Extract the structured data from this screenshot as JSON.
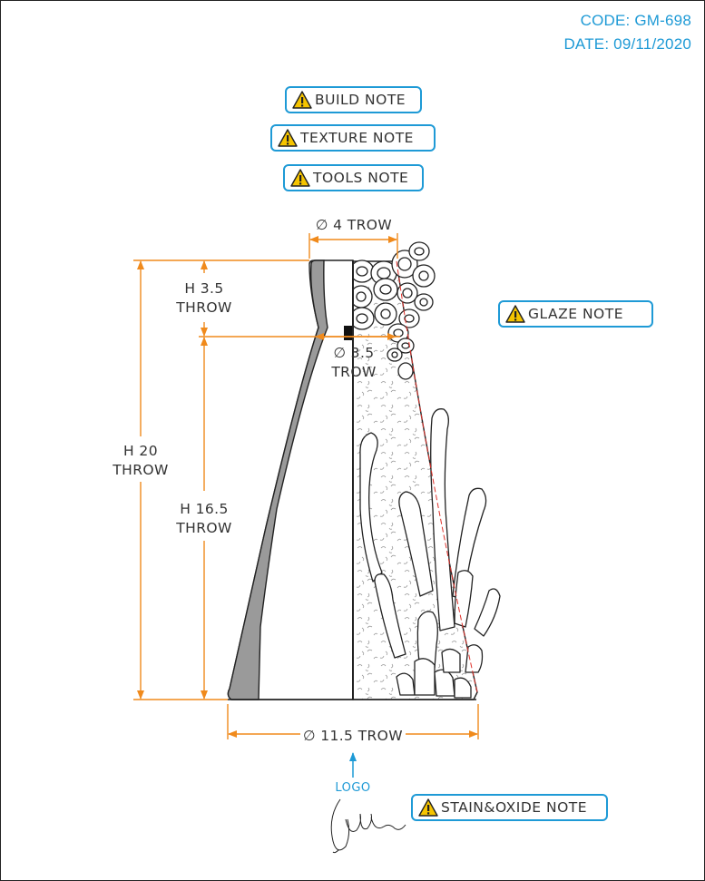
{
  "header": {
    "code": "CODE: GM-698",
    "date": "DATE: 09/11/2020"
  },
  "notes": {
    "build": "BUILD NOTE",
    "texture": "TEXTURE NOTE",
    "tools": "TOOLS NOTE",
    "glaze": "GLAZE NOTE",
    "stain_oxide": "STAIN&OXIDE NOTE"
  },
  "dimensions": {
    "top_diameter": "∅ 4 TROW",
    "neck_diameter_symbol": "∅ 3.5",
    "neck_diameter_tool": "TROW",
    "base_diameter": "∅ 11.5 TROW",
    "neck_height": "H 3.5",
    "neck_height_tool": "THROW",
    "total_height": "H 20",
    "total_height_tool": "THROW",
    "body_height": "H 16.5",
    "body_height_tool": "THROW"
  },
  "logo_label": "LOGO",
  "colors": {
    "accent_blue": "#1e9ad6",
    "dimension_orange": "#f08a1c",
    "profile_gray": "#9a9a9a",
    "guide_red": "#e0322b"
  }
}
